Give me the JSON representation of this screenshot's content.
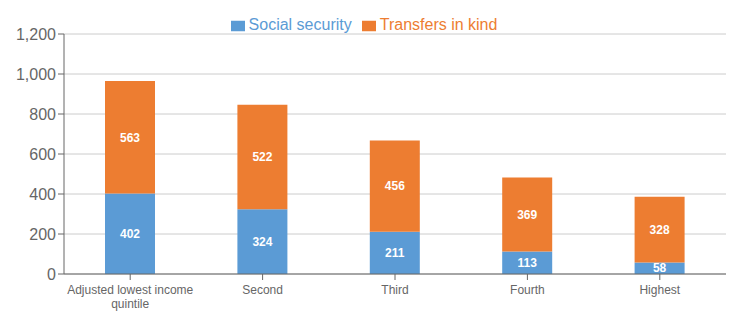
{
  "chart_data": {
    "type": "bar",
    "stacked": true,
    "categories": [
      "Adjusted lowest income\nquintile",
      "Second",
      "Third",
      "Fourth",
      "Highest"
    ],
    "series": [
      {
        "name": "Social security",
        "color": "#5b9bd5",
        "values": [
          402,
          324,
          211,
          113,
          58
        ]
      },
      {
        "name": "Transfers in kind",
        "color": "#ed7d31",
        "values": [
          563,
          522,
          456,
          369,
          328
        ]
      }
    ],
    "ylim": [
      0,
      1200
    ],
    "yticks": [
      0,
      200,
      400,
      600,
      800,
      {
        "value": 1000,
        "label": "1,000"
      },
      {
        "value": 1200,
        "label": "1,200"
      }
    ],
    "grid": true,
    "legend": "top",
    "data_labels": true
  }
}
